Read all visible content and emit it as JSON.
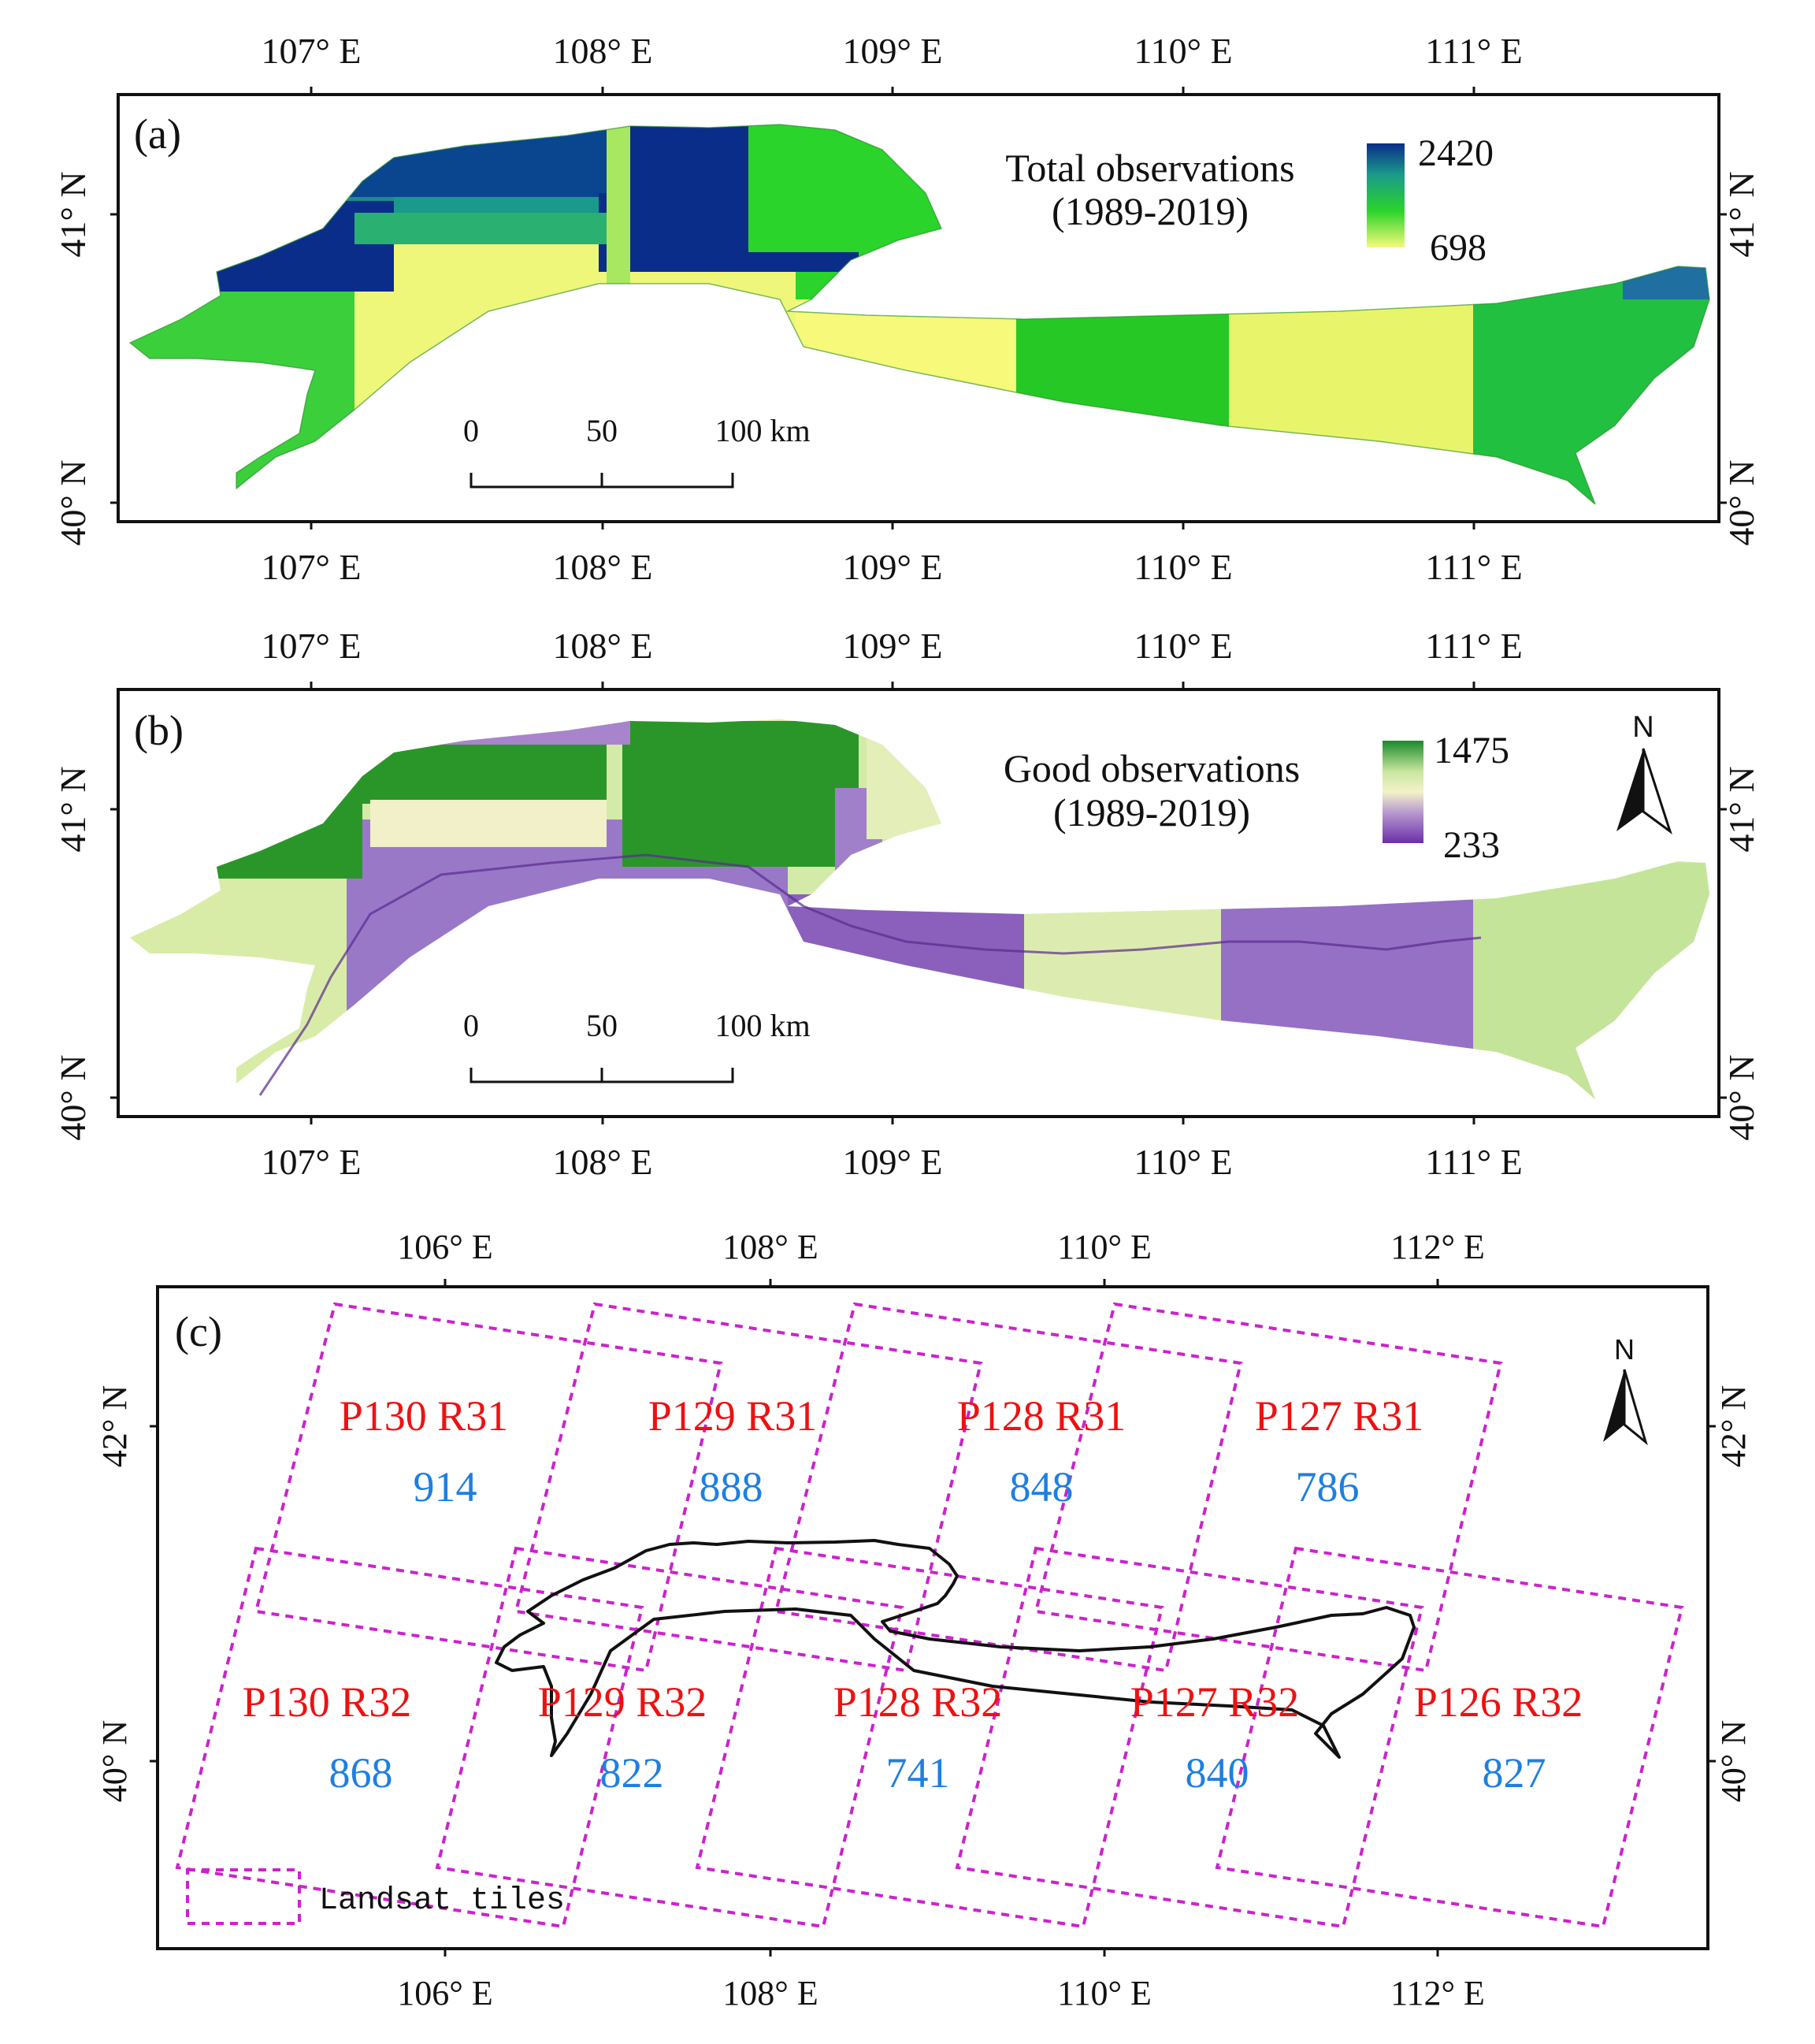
{
  "panels": {
    "a": {
      "label": "(a)",
      "legend_title": "Total observations",
      "legend_period": "(1989-2019)",
      "legend_max": "2420",
      "legend_min": "698",
      "x_ticks": [
        "107° E",
        "108° E",
        "109° E",
        "110° E",
        "111° E"
      ],
      "y_ticks": [
        "41° N",
        "40° N"
      ],
      "scale_labels": [
        "0",
        "50",
        "100 km"
      ],
      "colors": [
        "#f6f97a",
        "#2ad42a",
        "#1a9a8a",
        "#0a2d8a"
      ]
    },
    "b": {
      "label": "(b)",
      "legend_title": "Good observations",
      "legend_period": "(1989-2019)",
      "legend_max": "1475",
      "legend_min": "233",
      "x_ticks": [
        "107° E",
        "108° E",
        "109° E",
        "110° E",
        "111° E"
      ],
      "y_ticks": [
        "41° N",
        "40° N"
      ],
      "scale_labels": [
        "0",
        "50",
        "100 km"
      ],
      "north": "N",
      "colors": [
        "#6a2fa8",
        "#b89ad0",
        "#f4f2c8",
        "#c8e6a0",
        "#1a8a2a"
      ]
    },
    "c": {
      "label": "(c)",
      "x_ticks": [
        "106° E",
        "108° E",
        "110° E",
        "112° E"
      ],
      "y_ticks": [
        "42° N",
        "40° N"
      ],
      "north": "N",
      "legend_label": "Landsat tiles",
      "tile_color": "#cc22cc",
      "tiles": [
        {
          "name": "P130 R31",
          "count": "914"
        },
        {
          "name": "P129 R31",
          "count": "888"
        },
        {
          "name": "P128 R31",
          "count": "848"
        },
        {
          "name": "P127 R31",
          "count": "786"
        },
        {
          "name": "P130 R32",
          "count": "868"
        },
        {
          "name": "P129 R32",
          "count": "822"
        },
        {
          "name": "P128 R32",
          "count": "741"
        },
        {
          "name": "P127 R32",
          "count": "840"
        },
        {
          "name": "P126 R32",
          "count": "827"
        }
      ]
    }
  }
}
